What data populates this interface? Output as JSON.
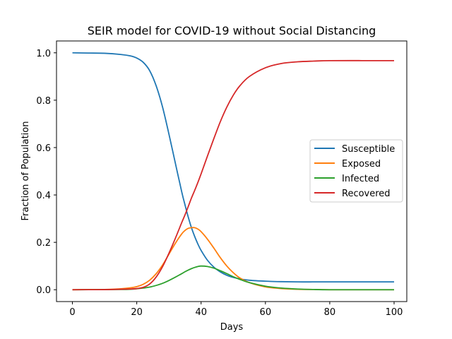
{
  "chart_data": {
    "type": "line",
    "title": "SEIR model for COVID-19 without Social Distancing",
    "xlabel": "Days",
    "ylabel": "Fraction of Population",
    "xlim": [
      -4.95,
      103.95
    ],
    "ylim": [
      -0.05,
      1.05
    ],
    "xticks": [
      0,
      20,
      40,
      60,
      80,
      100
    ],
    "yticks": [
      0.0,
      0.2,
      0.4,
      0.6,
      0.8,
      1.0
    ],
    "xtick_labels": [
      "0",
      "20",
      "40",
      "60",
      "80",
      "100"
    ],
    "ytick_labels": [
      "0.0",
      "0.2",
      "0.4",
      "0.6",
      "0.8",
      "1.0"
    ],
    "grid": false,
    "legend_position": "center-right",
    "x": [
      0,
      5,
      10,
      15,
      18,
      20,
      22,
      24,
      26,
      28,
      30,
      32,
      34,
      35,
      36,
      37,
      38,
      39,
      40,
      42,
      44,
      46,
      48,
      50,
      52,
      55,
      60,
      65,
      70,
      75,
      80,
      90,
      100
    ],
    "series": [
      {
        "name": "Susceptible",
        "color": "#1f77b4",
        "values": [
          1.0,
          0.999,
          0.998,
          0.993,
          0.987,
          0.978,
          0.96,
          0.925,
          0.862,
          0.772,
          0.657,
          0.534,
          0.412,
          0.358,
          0.307,
          0.262,
          0.225,
          0.193,
          0.166,
          0.124,
          0.095,
          0.075,
          0.061,
          0.052,
          0.046,
          0.04,
          0.036,
          0.034,
          0.033,
          0.033,
          0.033,
          0.033,
          0.033
        ]
      },
      {
        "name": "Exposed",
        "color": "#ff7f0e",
        "values": [
          0.0,
          0.0005,
          0.001,
          0.004,
          0.008,
          0.013,
          0.023,
          0.04,
          0.067,
          0.104,
          0.15,
          0.196,
          0.236,
          0.25,
          0.259,
          0.262,
          0.262,
          0.256,
          0.245,
          0.213,
          0.175,
          0.135,
          0.1,
          0.072,
          0.05,
          0.03,
          0.012,
          0.005,
          0.002,
          0.001,
          0.0,
          0.0,
          0.0
        ]
      },
      {
        "name": "Infected",
        "color": "#2ca02c",
        "values": [
          0.0,
          0.0002,
          0.0005,
          0.001,
          0.002,
          0.004,
          0.007,
          0.011,
          0.018,
          0.027,
          0.039,
          0.053,
          0.068,
          0.076,
          0.083,
          0.089,
          0.094,
          0.098,
          0.1,
          0.098,
          0.091,
          0.08,
          0.068,
          0.055,
          0.044,
          0.03,
          0.015,
          0.007,
          0.003,
          0.001,
          0.0,
          0.0,
          0.0
        ]
      },
      {
        "name": "Recovered",
        "color": "#d62728",
        "values": [
          0.0,
          0.0003,
          0.0005,
          0.002,
          0.003,
          0.005,
          0.01,
          0.024,
          0.053,
          0.097,
          0.154,
          0.217,
          0.284,
          0.316,
          0.351,
          0.387,
          0.419,
          0.453,
          0.489,
          0.565,
          0.639,
          0.71,
          0.771,
          0.821,
          0.86,
          0.9,
          0.937,
          0.955,
          0.962,
          0.965,
          0.967,
          0.967,
          0.967
        ]
      }
    ]
  }
}
